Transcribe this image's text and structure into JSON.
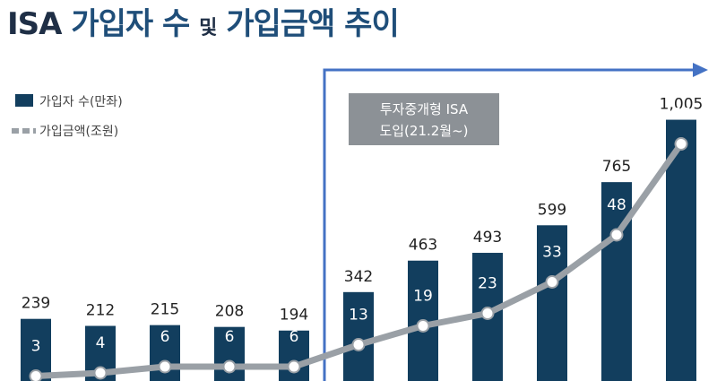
{
  "title": {
    "part_a": "ISA",
    "part_b": "가입자 수",
    "part_c": "및",
    "part_d": "가입금액 추이"
  },
  "chart_data": {
    "type": "bar",
    "title": "ISA 가입자 수 및 가입금액 추이",
    "categories": [
      "",
      "",
      "",
      "",
      "",
      "",
      "",
      "",
      "",
      "",
      ""
    ],
    "series": [
      {
        "name": "가입자 수(만좌)",
        "type": "bar",
        "values": [
          239,
          212,
          215,
          208,
          194,
          342,
          463,
          493,
          599,
          765,
          1005
        ],
        "value_labels": [
          "239",
          "212",
          "215",
          "208",
          "194",
          "342",
          "463",
          "493",
          "599",
          "765",
          "1,005"
        ]
      },
      {
        "name": "가입금액(조원)",
        "type": "line",
        "values": [
          3,
          4,
          6,
          6,
          6,
          13,
          19,
          23,
          33,
          48,
          77
        ]
      }
    ],
    "colors": {
      "bar": "#123e5e",
      "line": "#9aa0a6",
      "highlight": "#4472c4",
      "note_bg": "#8c9196"
    },
    "annotation": {
      "line1": "투자중개형 ISA",
      "line2": "도입(21.2월~)",
      "start_index": 5
    },
    "legend": "top-left"
  }
}
